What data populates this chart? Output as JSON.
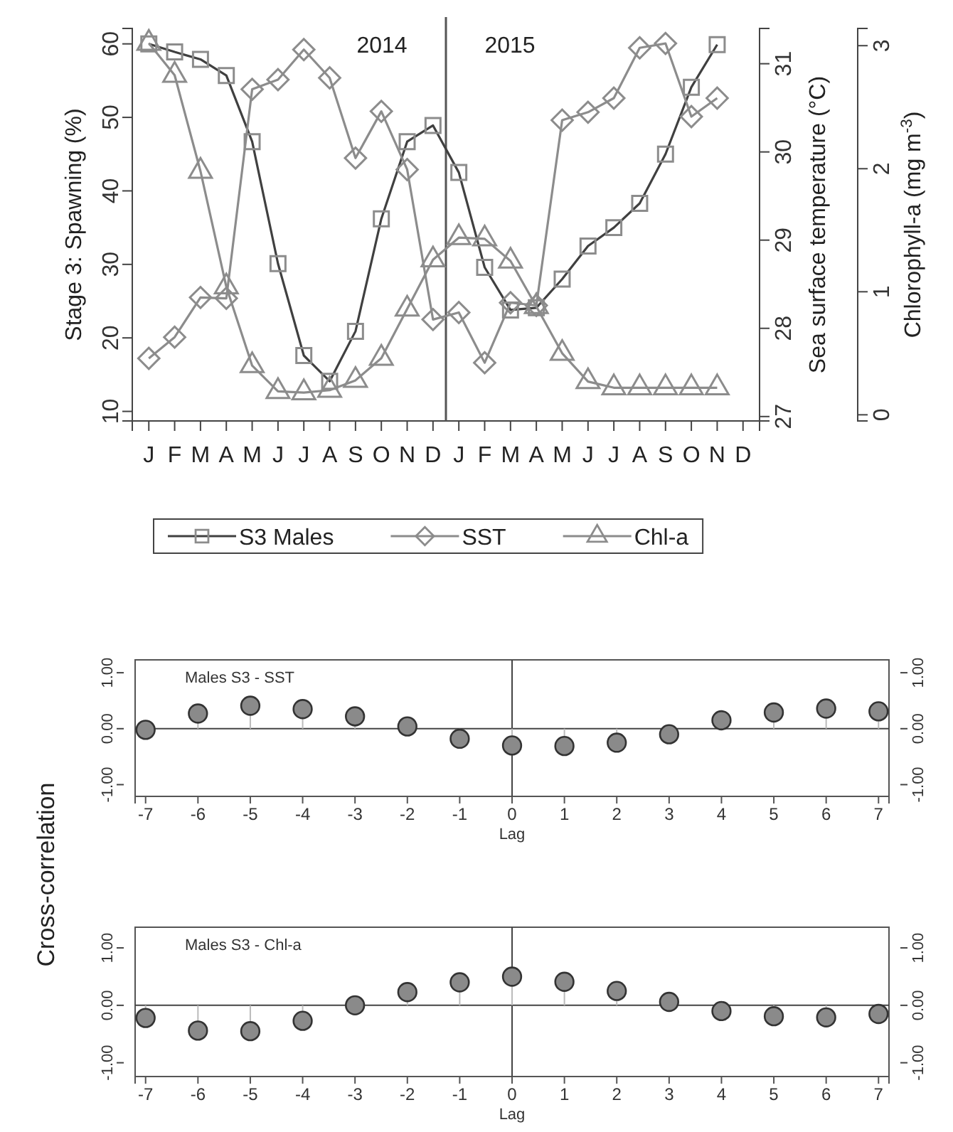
{
  "chart_data": [
    {
      "type": "line",
      "ylabel": "Stage 3: Spawning (%)",
      "y2label": "Sea surface temperature (°C)",
      "y3label": "Chlorophyll-a (mg m$^{-3}$)",
      "categories": [
        "J",
        "F",
        "M",
        "A",
        "M",
        "J",
        "J",
        "A",
        "S",
        "O",
        "N",
        "D",
        "J",
        "F",
        "M",
        "A",
        "M",
        "J",
        "J",
        "A",
        "S",
        "O",
        "N",
        "D"
      ],
      "ylim": [
        8.7,
        62.1
      ],
      "yticks": [
        10,
        20,
        30,
        40,
        50,
        60
      ],
      "y2lim": [
        26.95,
        31.4
      ],
      "y2ticks": [
        27,
        28,
        29,
        30,
        31
      ],
      "y3lim": [
        -0.05,
        3.14
      ],
      "y3ticks": [
        0,
        1,
        2,
        3
      ],
      "series": [
        {
          "name": "S3 Males",
          "color": "#404040",
          "marker": "square",
          "values": [
            60,
            58.9,
            57.9,
            55.7,
            46.7,
            30.1,
            17.6,
            14.1,
            20.9,
            36.2,
            46.7,
            48.9,
            42.5,
            29.6,
            23.8,
            24.1,
            28.0,
            32.5,
            35.0,
            38.3,
            45.0,
            54.1,
            59.9,
            null
          ]
        },
        {
          "name": "SST",
          "color": "#8c8c8c",
          "marker": "diamond",
          "axis": "y2",
          "values": [
            27.66,
            27.9,
            28.35,
            28.34,
            30.71,
            30.82,
            31.16,
            30.84,
            29.93,
            30.46,
            29.8,
            28.1,
            28.18,
            27.61,
            28.29,
            28.26,
            30.36,
            30.45,
            30.61,
            31.18,
            31.23,
            30.4,
            30.61,
            null
          ]
        },
        {
          "name": "Chl-a",
          "color": "#8c8c8c",
          "marker": "triangle",
          "axis": "y3",
          "values": [
            3.02,
            2.76,
            1.98,
            1.04,
            0.4,
            0.19,
            0.18,
            0.2,
            0.28,
            0.46,
            0.86,
            1.26,
            1.44,
            1.43,
            1.25,
            0.88,
            0.5,
            0.27,
            0.22,
            0.22,
            0.22,
            0.22,
            0.22,
            null
          ]
        }
      ],
      "annotations": [
        "2014",
        "2015"
      ],
      "legend": "bottom"
    },
    {
      "type": "lollipop",
      "title": "Males S3 - SST",
      "xlabel": "Lag",
      "ylabel": "Cross-correlation",
      "marker": "circle",
      "x": [
        -7,
        -6,
        -5,
        -4,
        -3,
        -2,
        -1,
        0,
        1,
        2,
        3,
        4,
        5,
        6,
        7
      ],
      "xlim": [
        -7.2,
        7.2
      ],
      "xticks": [
        -7,
        -6,
        -5,
        -4,
        -3,
        -2,
        -1,
        0,
        1,
        2,
        3,
        4,
        5,
        6,
        7
      ],
      "ylim": [
        -1.21,
        1.23
      ],
      "yticks": [
        {
          "value": -1,
          "label": "-1.00"
        },
        {
          "value": 0,
          "label": "0.00"
        },
        {
          "value": 1,
          "label": "1.00"
        }
      ],
      "y2lim": [
        -1.21,
        1.23
      ],
      "y2ticks": [
        {
          "value": -1,
          "label": "-1.00"
        },
        {
          "value": 0,
          "label": "0.00"
        },
        {
          "value": 1,
          "label": "1.00"
        }
      ],
      "series": [
        {
          "color": "#8a8a8a",
          "values": [
            -0.02,
            0.27,
            0.41,
            0.35,
            0.22,
            0.04,
            -0.18,
            -0.3,
            -0.31,
            -0.25,
            -0.1,
            0.15,
            0.29,
            0.36,
            0.31
          ]
        }
      ]
    },
    {
      "type": "lollipop",
      "title": "Males S3 - Chl-a",
      "xlabel": "Lag",
      "marker": "circle",
      "x": [
        -7,
        -6,
        -5,
        -4,
        -3,
        -2,
        -1,
        0,
        1,
        2,
        3,
        4,
        5,
        6,
        7
      ],
      "xlim": [
        -7.2,
        7.2
      ],
      "xticks": [
        -7,
        -6,
        -5,
        -4,
        -3,
        -2,
        -1,
        0,
        1,
        2,
        3,
        4,
        5,
        6,
        7
      ],
      "ylim": [
        -1.24,
        1.36
      ],
      "yticks": [
        {
          "value": -1,
          "label": "-1.00"
        },
        {
          "value": 0,
          "label": "0.00"
        },
        {
          "value": 1,
          "label": "1.00"
        }
      ],
      "y2lim": [
        -1.24,
        1.36
      ],
      "y2ticks": [
        {
          "value": -1,
          "label": "-1.00"
        },
        {
          "value": 0,
          "label": "0.00"
        },
        {
          "value": 1,
          "label": "1.00"
        }
      ],
      "series": [
        {
          "color": "#8a8a8a",
          "values": [
            -0.22,
            -0.44,
            -0.45,
            -0.27,
            0,
            0.23,
            0.4,
            0.5,
            0.41,
            0.25,
            0.06,
            -0.1,
            -0.19,
            -0.21,
            -0.15
          ]
        }
      ]
    }
  ]
}
